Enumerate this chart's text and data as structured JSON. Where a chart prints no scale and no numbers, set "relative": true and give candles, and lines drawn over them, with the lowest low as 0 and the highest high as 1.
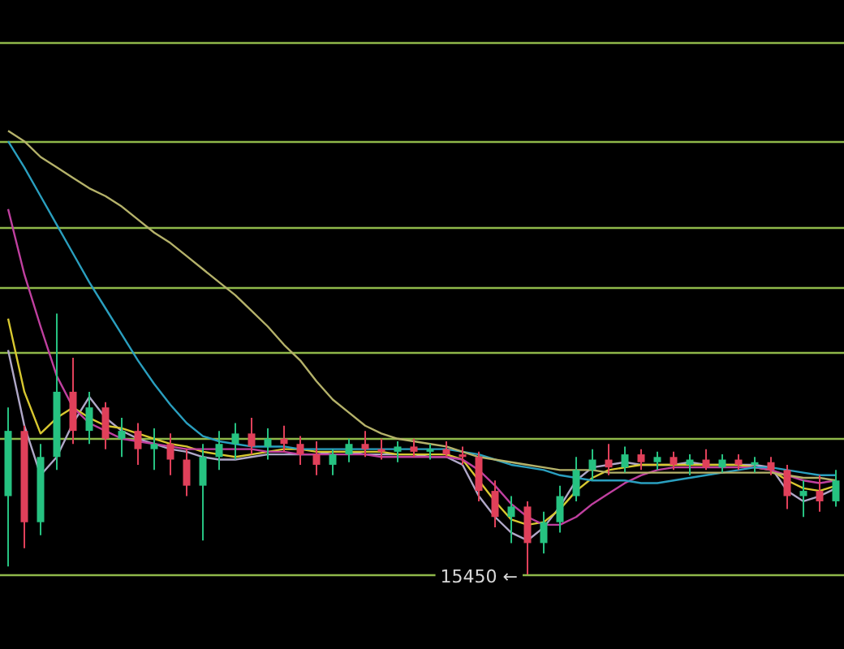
{
  "chart_data": {
    "type": "candlestick",
    "relative": true,
    "categories": [
      null,
      null,
      null,
      null,
      null,
      null,
      null,
      null,
      null,
      null,
      null,
      null,
      null,
      null,
      null,
      null,
      null,
      null,
      null,
      null,
      null,
      null,
      null,
      null,
      null,
      null,
      null,
      null,
      null,
      null,
      null,
      null,
      null,
      null,
      null,
      null,
      null,
      null,
      null,
      null,
      null,
      null,
      null,
      null,
      null,
      null,
      null,
      null,
      null,
      null,
      null,
      null
    ],
    "ohlc": [
      [
        0.3,
        0.64,
        0.03,
        0.55
      ],
      [
        0.55,
        0.57,
        0.1,
        0.2
      ],
      [
        0.2,
        0.5,
        0.15,
        0.45
      ],
      [
        0.45,
        1.0,
        0.4,
        0.7
      ],
      [
        0.7,
        0.83,
        0.5,
        0.55
      ],
      [
        0.55,
        0.7,
        0.5,
        0.64
      ],
      [
        0.64,
        0.66,
        0.48,
        0.52
      ],
      [
        0.52,
        0.6,
        0.45,
        0.55
      ],
      [
        0.55,
        0.58,
        0.42,
        0.48
      ],
      [
        0.48,
        0.56,
        0.4,
        0.5
      ],
      [
        0.5,
        0.54,
        0.38,
        0.44
      ],
      [
        0.44,
        0.48,
        0.3,
        0.34
      ],
      [
        0.34,
        0.5,
        0.13,
        0.45
      ],
      [
        0.45,
        0.55,
        0.4,
        0.5
      ],
      [
        0.5,
        0.58,
        0.44,
        0.54
      ],
      [
        0.54,
        0.6,
        0.46,
        0.49
      ],
      [
        0.49,
        0.56,
        0.44,
        0.52
      ],
      [
        0.52,
        0.57,
        0.47,
        0.5
      ],
      [
        0.5,
        0.53,
        0.42,
        0.46
      ],
      [
        0.46,
        0.51,
        0.38,
        0.42
      ],
      [
        0.42,
        0.48,
        0.38,
        0.46
      ],
      [
        0.46,
        0.52,
        0.43,
        0.5
      ],
      [
        0.5,
        0.55,
        0.45,
        0.48
      ],
      [
        0.48,
        0.52,
        0.44,
        0.47
      ],
      [
        0.47,
        0.51,
        0.43,
        0.49
      ],
      [
        0.49,
        0.52,
        0.45,
        0.47
      ],
      [
        0.47,
        0.5,
        0.44,
        0.48
      ],
      [
        0.48,
        0.51,
        0.45,
        0.46
      ],
      [
        0.46,
        0.49,
        0.42,
        0.45
      ],
      [
        0.45,
        0.47,
        0.28,
        0.32
      ],
      [
        0.32,
        0.36,
        0.18,
        0.22
      ],
      [
        0.22,
        0.3,
        0.12,
        0.26
      ],
      [
        0.26,
        0.28,
        0.0,
        0.12
      ],
      [
        0.12,
        0.24,
        0.08,
        0.2
      ],
      [
        0.2,
        0.34,
        0.16,
        0.3
      ],
      [
        0.3,
        0.45,
        0.28,
        0.4
      ],
      [
        0.4,
        0.48,
        0.36,
        0.44
      ],
      [
        0.44,
        0.5,
        0.38,
        0.41
      ],
      [
        0.41,
        0.49,
        0.39,
        0.46
      ],
      [
        0.46,
        0.48,
        0.4,
        0.43
      ],
      [
        0.43,
        0.47,
        0.4,
        0.45
      ],
      [
        0.45,
        0.47,
        0.4,
        0.42
      ],
      [
        0.42,
        0.46,
        0.38,
        0.44
      ],
      [
        0.44,
        0.48,
        0.4,
        0.41
      ],
      [
        0.41,
        0.46,
        0.39,
        0.44
      ],
      [
        0.44,
        0.46,
        0.4,
        0.42
      ],
      [
        0.42,
        0.45,
        0.39,
        0.43
      ],
      [
        0.43,
        0.45,
        0.38,
        0.4
      ],
      [
        0.4,
        0.42,
        0.25,
        0.3
      ],
      [
        0.3,
        0.36,
        0.22,
        0.32
      ],
      [
        0.32,
        0.38,
        0.24,
        0.28
      ],
      [
        0.28,
        0.4,
        0.26,
        0.36
      ]
    ],
    "colors": [
      "#26c281",
      "#e0405a",
      "#26c281",
      "#26c281",
      "#e0405a",
      "#26c281",
      "#e0405a",
      "#26c281",
      "#e0405a",
      "#26c281",
      "#e0405a",
      "#e0405a",
      "#26c281",
      "#26c281",
      "#26c281",
      "#e0405a",
      "#26c281",
      "#e0405a",
      "#e0405a",
      "#e0405a",
      "#26c281",
      "#26c281",
      "#e0405a",
      "#e0405a",
      "#26c281",
      "#e0405a",
      "#26c281",
      "#e0405a",
      "#e0405a",
      "#e0405a",
      "#e0405a",
      "#26c281",
      "#e0405a",
      "#26c281",
      "#26c281",
      "#26c281",
      "#26c281",
      "#e0405a",
      "#26c281",
      "#e0405a",
      "#26c281",
      "#e0405a",
      "#26c281",
      "#e0405a",
      "#26c281",
      "#e0405a",
      "#26c281",
      "#e0405a",
      "#e0405a",
      "#26c281",
      "#e0405a",
      "#26c281"
    ],
    "series": [
      {
        "type": "line",
        "color": "#b5b26a",
        "values": [
          1.7,
          1.66,
          1.6,
          1.56,
          1.52,
          1.48,
          1.45,
          1.41,
          1.36,
          1.31,
          1.27,
          1.22,
          1.17,
          1.12,
          1.07,
          1.01,
          0.95,
          0.88,
          0.82,
          0.74,
          0.67,
          0.62,
          0.57,
          0.54,
          0.52,
          0.51,
          0.5,
          0.49,
          0.47,
          0.45,
          0.44,
          0.43,
          0.42,
          0.41,
          0.4,
          0.4,
          0.4,
          0.39,
          0.39,
          0.39,
          0.39,
          0.39,
          0.39,
          0.39,
          0.39,
          0.39,
          0.39,
          0.39,
          0.38,
          0.37,
          0.37,
          0.36
        ]
      },
      {
        "type": "line",
        "color": "#2a9fbf",
        "values": [
          1.66,
          1.56,
          1.45,
          1.34,
          1.23,
          1.12,
          1.02,
          0.92,
          0.82,
          0.73,
          0.65,
          0.58,
          0.53,
          0.51,
          0.5,
          0.49,
          0.49,
          0.49,
          0.48,
          0.48,
          0.48,
          0.48,
          0.48,
          0.48,
          0.48,
          0.48,
          0.48,
          0.48,
          0.47,
          0.46,
          0.44,
          0.42,
          0.41,
          0.4,
          0.38,
          0.37,
          0.36,
          0.36,
          0.36,
          0.35,
          0.35,
          0.36,
          0.37,
          0.38,
          0.39,
          0.4,
          0.41,
          0.41,
          0.4,
          0.39,
          0.38,
          0.38
        ]
      },
      {
        "type": "line",
        "color": "#c040a0",
        "values": [
          1.4,
          1.15,
          0.95,
          0.76,
          0.64,
          0.58,
          0.55,
          0.52,
          0.51,
          0.5,
          0.49,
          0.48,
          0.48,
          0.48,
          0.48,
          0.48,
          0.47,
          0.47,
          0.46,
          0.46,
          0.46,
          0.46,
          0.46,
          0.45,
          0.45,
          0.45,
          0.45,
          0.45,
          0.44,
          0.4,
          0.34,
          0.27,
          0.22,
          0.19,
          0.19,
          0.22,
          0.27,
          0.31,
          0.35,
          0.38,
          0.4,
          0.41,
          0.41,
          0.41,
          0.41,
          0.41,
          0.41,
          0.4,
          0.38,
          0.36,
          0.35,
          0.36
        ]
      },
      {
        "type": "line",
        "color": "#d8c830",
        "values": [
          0.98,
          0.7,
          0.54,
          0.6,
          0.64,
          0.6,
          0.57,
          0.56,
          0.54,
          0.52,
          0.5,
          0.49,
          0.47,
          0.46,
          0.45,
          0.46,
          0.47,
          0.48,
          0.48,
          0.47,
          0.47,
          0.47,
          0.47,
          0.47,
          0.46,
          0.46,
          0.46,
          0.46,
          0.44,
          0.36,
          0.28,
          0.21,
          0.19,
          0.2,
          0.25,
          0.32,
          0.37,
          0.4,
          0.41,
          0.42,
          0.42,
          0.42,
          0.42,
          0.42,
          0.42,
          0.42,
          0.41,
          0.4,
          0.36,
          0.33,
          0.32,
          0.34
        ]
      },
      {
        "type": "line",
        "color": "#b0a8c8",
        "values": [
          0.86,
          0.57,
          0.38,
          0.45,
          0.58,
          0.68,
          0.6,
          0.55,
          0.52,
          0.5,
          0.48,
          0.47,
          0.45,
          0.44,
          0.44,
          0.45,
          0.46,
          0.46,
          0.46,
          0.46,
          0.47,
          0.47,
          0.46,
          0.46,
          0.46,
          0.46,
          0.45,
          0.45,
          0.42,
          0.3,
          0.22,
          0.16,
          0.13,
          0.18,
          0.26,
          0.36,
          0.41,
          0.42,
          0.43,
          0.42,
          0.42,
          0.42,
          0.43,
          0.42,
          0.42,
          0.42,
          0.42,
          0.41,
          0.32,
          0.28,
          0.3,
          0.33
        ]
      }
    ],
    "ref_lines": [
      {
        "axis": "y",
        "value": 2.04,
        "color": "#8fb84a"
      },
      {
        "axis": "y",
        "value": 1.66,
        "color": "#8fb84a"
      },
      {
        "axis": "y",
        "value": 1.33,
        "color": "#8fb84a"
      },
      {
        "axis": "y",
        "value": 1.1,
        "color": "#8fb84a"
      },
      {
        "axis": "y",
        "value": 0.85,
        "color": "#8fb84a"
      },
      {
        "axis": "y",
        "value": 0.52,
        "color": "#8fb84a"
      },
      {
        "axis": "y",
        "value": 0,
        "color": "#8fb84a"
      }
    ],
    "annotations": [
      "15450 ←"
    ]
  }
}
